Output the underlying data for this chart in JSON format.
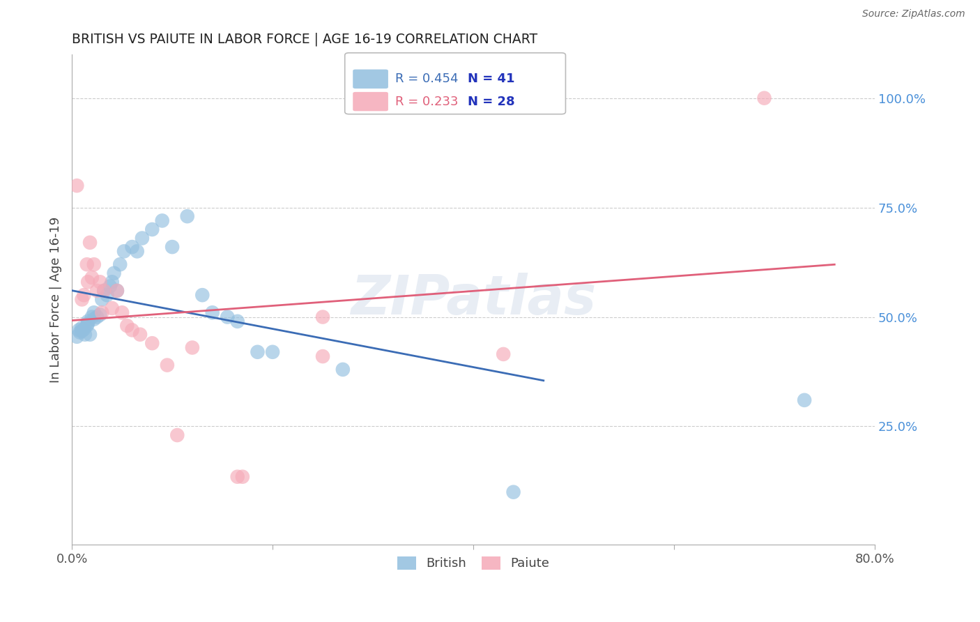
{
  "title": "BRITISH VS PAIUTE IN LABOR FORCE | AGE 16-19 CORRELATION CHART",
  "source": "Source: ZipAtlas.com",
  "ylabel_label": "In Labor Force | Age 16-19",
  "xlim": [
    0.0,
    0.8
  ],
  "ylim": [
    -0.02,
    1.1
  ],
  "xticks": [
    0.0,
    0.2,
    0.4,
    0.6,
    0.8
  ],
  "xtick_labels": [
    "0.0%",
    "",
    "",
    "",
    "80.0%"
  ],
  "yticks": [
    0.0,
    0.25,
    0.5,
    0.75,
    1.0
  ],
  "ytick_labels": [
    "",
    "25.0%",
    "50.0%",
    "75.0%",
    "100.0%"
  ],
  "british_R": 0.454,
  "british_N": 41,
  "paiute_R": 0.233,
  "paiute_N": 28,
  "british_color": "#92bfdf",
  "paiute_color": "#f5aab8",
  "british_line_color": "#3b6cb5",
  "paiute_line_color": "#e0607a",
  "watermark": "ZIPatlas",
  "british_x": [
    0.005,
    0.007,
    0.008,
    0.01,
    0.01,
    0.012,
    0.013,
    0.015,
    0.016,
    0.016,
    0.018,
    0.02,
    0.022,
    0.022,
    0.025,
    0.028,
    0.03,
    0.032,
    0.035,
    0.038,
    0.04,
    0.042,
    0.045,
    0.048,
    0.052,
    0.06,
    0.065,
    0.07,
    0.08,
    0.09,
    0.1,
    0.115,
    0.13,
    0.14,
    0.155,
    0.165,
    0.185,
    0.2,
    0.27,
    0.44,
    0.73
  ],
  "british_y": [
    0.455,
    0.47,
    0.465,
    0.468,
    0.475,
    0.472,
    0.46,
    0.48,
    0.485,
    0.49,
    0.46,
    0.5,
    0.495,
    0.51,
    0.5,
    0.505,
    0.54,
    0.56,
    0.55,
    0.57,
    0.58,
    0.6,
    0.56,
    0.62,
    0.65,
    0.66,
    0.65,
    0.68,
    0.7,
    0.72,
    0.66,
    0.73,
    0.55,
    0.51,
    0.5,
    0.49,
    0.42,
    0.42,
    0.38,
    0.1,
    0.31
  ],
  "paiute_x": [
    0.005,
    0.01,
    0.012,
    0.015,
    0.016,
    0.018,
    0.02,
    0.022,
    0.025,
    0.028,
    0.03,
    0.032,
    0.04,
    0.045,
    0.05,
    0.055,
    0.06,
    0.068,
    0.08,
    0.095,
    0.105,
    0.12,
    0.165,
    0.17,
    0.25,
    0.25,
    0.43,
    0.69
  ],
  "paiute_y": [
    0.8,
    0.54,
    0.55,
    0.62,
    0.58,
    0.67,
    0.59,
    0.62,
    0.56,
    0.58,
    0.51,
    0.56,
    0.52,
    0.56,
    0.51,
    0.48,
    0.47,
    0.46,
    0.44,
    0.39,
    0.23,
    0.43,
    0.135,
    0.135,
    0.41,
    0.5,
    0.415,
    1.0
  ]
}
